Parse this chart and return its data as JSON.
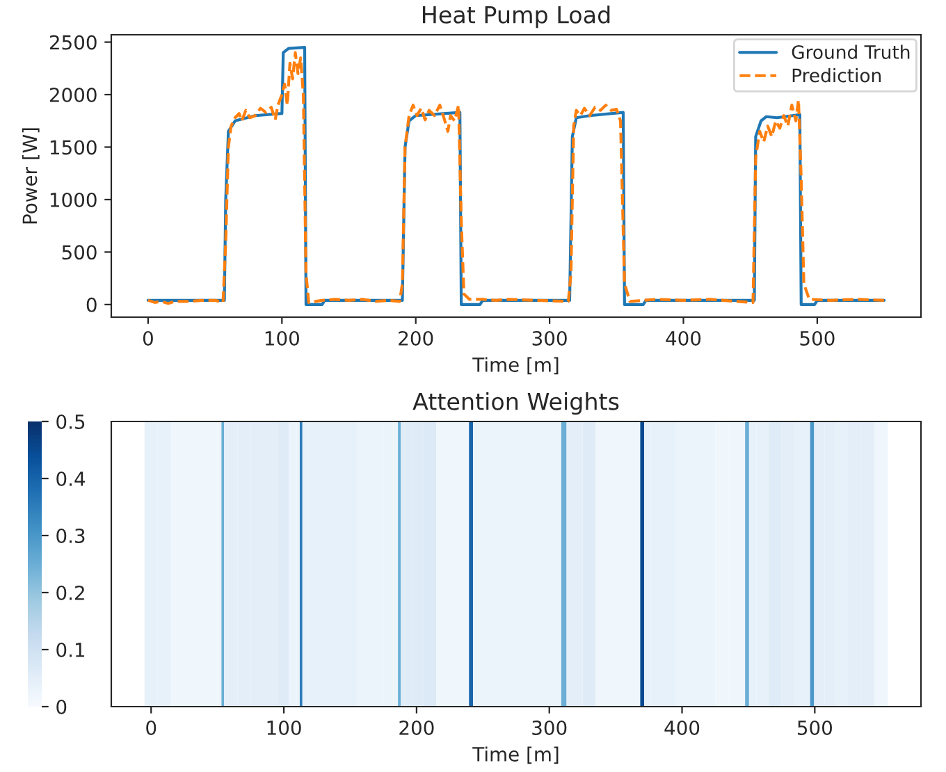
{
  "chart_data": [
    {
      "type": "line",
      "title": "Heat Pump Load",
      "xlabel": "Time [m]",
      "ylabel": "Power [W]",
      "xlim": [
        -27.5,
        577.5
      ],
      "xticks": [
        0,
        100,
        200,
        300,
        400,
        500
      ],
      "ylim": [
        -120,
        2570
      ],
      "yticks": [
        0,
        500,
        1000,
        1500,
        2000,
        2500
      ],
      "legend": "top right",
      "grid": false,
      "series": [
        {
          "name": "Ground Truth",
          "color": "#1f77b4",
          "line_style": "solid",
          "x": [
            0,
            57,
            58,
            60,
            65,
            80,
            100,
            101,
            105,
            117,
            118,
            130,
            132,
            190,
            192,
            195,
            200,
            233,
            234,
            248,
            250,
            315,
            317,
            320,
            330,
            355,
            356,
            370,
            372,
            453,
            454,
            458,
            462,
            470,
            487,
            488,
            498,
            500,
            550
          ],
          "values": [
            40,
            40,
            1000,
            1650,
            1750,
            1800,
            1820,
            2400,
            2440,
            2450,
            0,
            0,
            40,
            40,
            1500,
            1750,
            1800,
            1830,
            0,
            0,
            40,
            40,
            1600,
            1780,
            1800,
            1830,
            0,
            0,
            40,
            40,
            1600,
            1750,
            1790,
            1780,
            1810,
            0,
            0,
            40,
            40
          ]
        },
        {
          "name": "Prediction",
          "color": "#ff7f0e",
          "line_style": "dashed",
          "x": [
            0,
            5,
            10,
            15,
            20,
            30,
            40,
            50,
            56,
            58,
            60,
            62,
            65,
            68,
            70,
            73,
            76,
            80,
            84,
            88,
            92,
            95,
            97,
            100,
            102,
            104,
            106,
            108,
            110,
            112,
            114,
            116,
            118,
            120,
            125,
            130,
            140,
            150,
            160,
            170,
            180,
            188,
            190,
            192,
            195,
            198,
            201,
            204,
            207,
            210,
            214,
            218,
            221,
            224,
            226,
            229,
            232,
            234,
            236,
            240,
            250,
            260,
            270,
            290,
            314,
            316,
            318,
            320,
            323,
            326,
            330,
            334,
            338,
            342,
            346,
            350,
            353,
            356,
            360,
            370,
            380,
            400,
            420,
            440,
            452,
            454,
            457,
            460,
            463,
            466,
            469,
            472,
            475,
            478,
            481,
            484,
            486,
            488,
            490,
            494,
            510,
            530,
            550
          ],
          "values": [
            40,
            20,
            30,
            10,
            30,
            30,
            40,
            40,
            20,
            600,
            1500,
            1700,
            1780,
            1820,
            1750,
            1850,
            1780,
            1800,
            1870,
            1830,
            1880,
            1760,
            1900,
            2000,
            2100,
            1900,
            2300,
            2150,
            2400,
            2200,
            2350,
            2000,
            300,
            20,
            30,
            40,
            50,
            40,
            50,
            30,
            40,
            30,
            200,
            1500,
            1800,
            1900,
            1800,
            1870,
            1760,
            1850,
            1800,
            1900,
            1780,
            1650,
            1800,
            1750,
            1900,
            800,
            100,
            50,
            50,
            40,
            50,
            40,
            30,
            300,
            1700,
            1850,
            1800,
            1870,
            1800,
            1880,
            1850,
            1900,
            1850,
            1860,
            1750,
            200,
            30,
            40,
            50,
            40,
            50,
            30,
            20,
            1400,
            1650,
            1550,
            1700,
            1600,
            1750,
            1680,
            1800,
            1700,
            1900,
            1750,
            1950,
            1200,
            200,
            50,
            40,
            50,
            40
          ]
        }
      ]
    },
    {
      "type": "heatmap",
      "title": "Attention Weights",
      "xlabel": "Time [m]",
      "xlim": [
        -30,
        580
      ],
      "xticks": [
        0,
        100,
        200,
        300,
        400,
        500
      ],
      "y_categories": [
        null
      ],
      "clim": [
        0,
        0.5
      ],
      "cticks": [
        0,
        0.1,
        0.2,
        0.3,
        0.4,
        0.5
      ],
      "x": [
        0,
        10,
        20,
        30,
        40,
        50,
        52,
        54,
        56,
        60,
        70,
        80,
        90,
        100,
        108,
        111,
        113,
        115,
        120,
        130,
        140,
        150,
        160,
        170,
        180,
        185,
        187,
        189,
        193,
        200,
        210,
        220,
        230,
        238,
        241,
        244,
        250,
        260,
        270,
        280,
        290,
        300,
        307,
        311,
        315,
        320,
        330,
        340,
        350,
        360,
        367,
        370,
        373,
        380,
        390,
        400,
        410,
        420,
        430,
        440,
        446,
        449,
        452,
        460,
        470,
        480,
        490,
        495,
        498,
        501,
        505,
        510,
        520,
        530,
        540,
        550
      ],
      "cells": [
        [
          0.04,
          0.04,
          0.02,
          0.02,
          0.02,
          0.02,
          0.03,
          0.25,
          0.05,
          0.05,
          0.05,
          0.05,
          0.05,
          0.06,
          0.03,
          0.03,
          0.35,
          0.04,
          0.04,
          0.04,
          0.04,
          0.04,
          0.03,
          0.03,
          0.03,
          0.03,
          0.25,
          0.06,
          0.06,
          0.06,
          0.07,
          0.02,
          0.02,
          0.02,
          0.4,
          0.03,
          0.03,
          0.03,
          0.03,
          0.03,
          0.03,
          0.03,
          0.03,
          0.25,
          0.05,
          0.05,
          0.06,
          0.02,
          0.02,
          0.02,
          0.02,
          0.45,
          0.04,
          0.04,
          0.04,
          0.03,
          0.03,
          0.03,
          0.02,
          0.02,
          0.02,
          0.25,
          0.04,
          0.04,
          0.06,
          0.05,
          0.04,
          0.04,
          0.3,
          0.05,
          0.05,
          0.05,
          0.04,
          0.05,
          0.05,
          0.02
        ]
      ]
    }
  ]
}
